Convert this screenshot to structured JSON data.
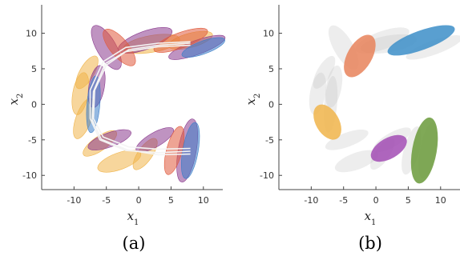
{
  "chart_data": [
    {
      "type": "scatter",
      "caption": "(a)",
      "xlabel": "x1",
      "ylabel": "x2",
      "xlim": [
        -15,
        13
      ],
      "ylim": [
        -12,
        14
      ],
      "xticks": [
        -10,
        -5,
        0,
        5,
        10
      ],
      "yticks": [
        -10,
        -5,
        0,
        5,
        10
      ],
      "grid": false,
      "series": [
        {
          "color": "#f0b44a",
          "ellipses": [
            {
              "x": -8.5,
              "y": -2.0,
              "rx": 1.2,
              "ry": 3.0,
              "angle": 20
            },
            {
              "x": -9.0,
              "y": 1.5,
              "rx": 1.2,
              "ry": 3.0,
              "angle": 10
            },
            {
              "x": -8.0,
              "y": 4.5,
              "rx": 1.1,
              "ry": 2.6,
              "angle": 30
            },
            {
              "x": -3.0,
              "y": -8.0,
              "rx": 1.3,
              "ry": 3.2,
              "angle": 70
            },
            {
              "x": 1.0,
              "y": -7.0,
              "rx": 1.1,
              "ry": 2.6,
              "angle": 35
            },
            {
              "x": -6.0,
              "y": -5.5,
              "rx": 1.1,
              "ry": 2.8,
              "angle": 55
            },
            {
              "x": 2.0,
              "y": 8.5,
              "rx": 1.3,
              "ry": 4.0,
              "angle": 80
            },
            {
              "x": 8.0,
              "y": 9.0,
              "rx": 1.1,
              "ry": 3.2,
              "angle": 75
            }
          ]
        },
        {
          "color": "#8a3a8e",
          "ellipses": [
            {
              "x": -5.0,
              "y": 8.0,
              "rx": 1.5,
              "ry": 3.5,
              "angle": -30
            },
            {
              "x": 1.0,
              "y": 9.0,
              "rx": 1.4,
              "ry": 4.0,
              "angle": 70
            },
            {
              "x": 9.0,
              "y": 8.0,
              "rx": 1.1,
              "ry": 4.2,
              "angle": 70
            },
            {
              "x": -6.5,
              "y": 2.5,
              "rx": 1.2,
              "ry": 3.0,
              "angle": 10
            },
            {
              "x": -4.5,
              "y": -5.0,
              "rx": 1.1,
              "ry": 3.2,
              "angle": 70
            },
            {
              "x": 7.5,
              "y": -6.5,
              "rx": 1.4,
              "ry": 4.5,
              "angle": 10
            },
            {
              "x": 2.5,
              "y": -5.0,
              "rx": 1.1,
              "ry": 3.0,
              "angle": 60
            }
          ]
        },
        {
          "color": "#e05a3c",
          "ellipses": [
            {
              "x": -3.0,
              "y": 8.0,
              "rx": 1.4,
              "ry": 3.2,
              "angle": -40
            },
            {
              "x": 6.5,
              "y": 9.0,
              "rx": 1.2,
              "ry": 4.0,
              "angle": 70
            },
            {
              "x": 5.5,
              "y": -6.5,
              "rx": 1.2,
              "ry": 3.5,
              "angle": 15
            }
          ]
        },
        {
          "color": "#3c7ec8",
          "ellipses": [
            {
              "x": -7.0,
              "y": 0.0,
              "rx": 1.0,
              "ry": 4.0,
              "angle": 5
            },
            {
              "x": 10.0,
              "y": 8.0,
              "rx": 1.0,
              "ry": 3.2,
              "angle": 70
            },
            {
              "x": 8.0,
              "y": -6.5,
              "rx": 1.2,
              "ry": 4.0,
              "angle": 10
            }
          ]
        }
      ],
      "trajectories": [
        [
          [
            8,
            8.8
          ],
          [
            3,
            8.6
          ],
          [
            -2,
            8.0
          ],
          [
            -5.5,
            6.0
          ],
          [
            -7.5,
            2.0
          ],
          [
            -7.5,
            -2.0
          ],
          [
            -6.0,
            -5.0
          ],
          [
            -2.0,
            -6.5
          ],
          [
            3.0,
            -6.8
          ],
          [
            8.0,
            -6.6
          ]
        ],
        [
          [
            8,
            8.3
          ],
          [
            3,
            8.1
          ],
          [
            -2,
            7.4
          ],
          [
            -5.0,
            5.5
          ],
          [
            -6.8,
            2.0
          ],
          [
            -7.0,
            -2.0
          ],
          [
            -5.5,
            -4.6
          ],
          [
            -1.5,
            -6.0
          ],
          [
            3.0,
            -6.3
          ],
          [
            8.0,
            -6.2
          ]
        ],
        [
          [
            8,
            8.6
          ],
          [
            3,
            8.3
          ],
          [
            -1.5,
            7.7
          ],
          [
            -5.2,
            5.7
          ],
          [
            -7.0,
            1.8
          ],
          [
            -7.2,
            -2.2
          ],
          [
            -5.8,
            -4.9
          ],
          [
            -1.8,
            -6.4
          ],
          [
            3.0,
            -7.1
          ],
          [
            8.0,
            -7.0
          ]
        ]
      ]
    },
    {
      "type": "scatter",
      "caption": "(b)",
      "xlabel": "x1",
      "ylabel": "x2",
      "xlim": [
        -15,
        13
      ],
      "ylim": [
        -12,
        14
      ],
      "xticks": [
        -10,
        -5,
        0,
        5,
        10
      ],
      "yticks": [
        -10,
        -5,
        0,
        5,
        10
      ],
      "grid": false,
      "background_ellipses": [
        {
          "x": -5.0,
          "y": 8.0,
          "rx": 1.5,
          "ry": 3.5,
          "angle": -30
        },
        {
          "x": 1.0,
          "y": 9.0,
          "rx": 1.4,
          "ry": 4.0,
          "angle": 70
        },
        {
          "x": 9.0,
          "y": 8.0,
          "rx": 1.1,
          "ry": 4.2,
          "angle": 70
        },
        {
          "x": -6.5,
          "y": 2.5,
          "rx": 1.2,
          "ry": 3.0,
          "angle": 10
        },
        {
          "x": -4.5,
          "y": -5.0,
          "rx": 1.1,
          "ry": 3.2,
          "angle": 70
        },
        {
          "x": 2.5,
          "y": -5.0,
          "rx": 1.1,
          "ry": 3.0,
          "angle": 60
        },
        {
          "x": -8.0,
          "y": 4.5,
          "rx": 1.1,
          "ry": 2.6,
          "angle": 30
        },
        {
          "x": -3.0,
          "y": -8.0,
          "rx": 1.3,
          "ry": 3.2,
          "angle": 70
        },
        {
          "x": 1.0,
          "y": -7.0,
          "rx": 1.1,
          "ry": 2.6,
          "angle": 35
        },
        {
          "x": -9.0,
          "y": 1.5,
          "rx": 1.2,
          "ry": 3.0,
          "angle": 10
        },
        {
          "x": -7.0,
          "y": 0.0,
          "rx": 1.0,
          "ry": 4.0,
          "angle": 5
        },
        {
          "x": 5.5,
          "y": -6.5,
          "rx": 1.2,
          "ry": 3.5,
          "angle": 15
        },
        {
          "x": 8.0,
          "y": -6.5,
          "rx": 1.2,
          "ry": 4.0,
          "angle": 10
        },
        {
          "x": 2.0,
          "y": 8.5,
          "rx": 1.3,
          "ry": 4.0,
          "angle": 80
        }
      ],
      "highlighted_ellipses": [
        {
          "x": -2.5,
          "y": 6.8,
          "rx": 1.9,
          "ry": 3.3,
          "angle": 30,
          "color": "#e8825a"
        },
        {
          "x": 7.0,
          "y": 9.0,
          "rx": 1.5,
          "ry": 5.0,
          "angle": 70,
          "color": "#3c8ec8"
        },
        {
          "x": -7.5,
          "y": -2.5,
          "rx": 1.8,
          "ry": 2.7,
          "angle": -30,
          "color": "#f0b44a"
        },
        {
          "x": 2.0,
          "y": -6.2,
          "rx": 1.6,
          "ry": 2.8,
          "angle": 60,
          "color": "#a24cb4"
        },
        {
          "x": 7.5,
          "y": -6.5,
          "rx": 1.9,
          "ry": 4.7,
          "angle": 10,
          "color": "#6a9a3a"
        }
      ]
    }
  ]
}
